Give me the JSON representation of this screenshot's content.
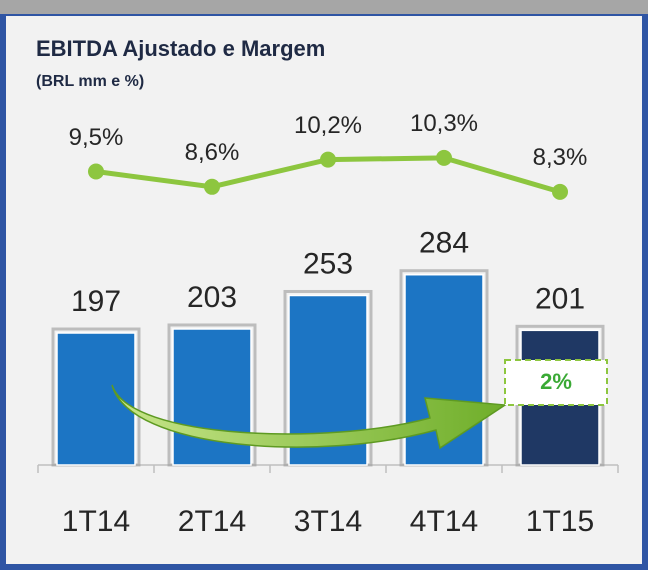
{
  "chart_data": {
    "type": "bar",
    "title": "EBITDA Ajustado e Margem",
    "subtitle": "(BRL mm e %)",
    "categories": [
      "1T14",
      "2T14",
      "3T14",
      "4T14",
      "1T15"
    ],
    "series": [
      {
        "type": "bar",
        "values": [
          197,
          203,
          253,
          284,
          201
        ],
        "colors": [
          "#1c75c4",
          "#1c75c4",
          "#1c75c4",
          "#1c75c4",
          "#1f3864"
        ]
      },
      {
        "type": "line",
        "axis": "y2",
        "color": "#8dc63f",
        "values": [
          9.5,
          8.6,
          10.2,
          10.3,
          8.3
        ],
        "value_labels": [
          "9,5%",
          "8,6%",
          "10,2%",
          "10,3%",
          "8,3%"
        ]
      }
    ],
    "ylim": [
      0,
      300
    ],
    "y2lim": [
      8,
      11
    ],
    "annotation": "2%"
  }
}
